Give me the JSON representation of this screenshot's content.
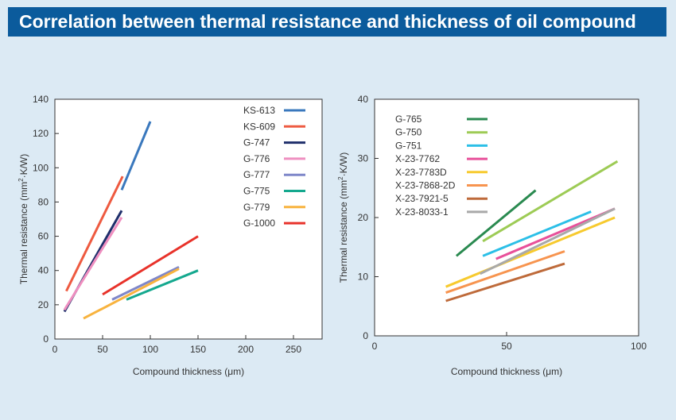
{
  "title": "Correlation between thermal resistance and thickness of oil compound",
  "chart_data": [
    {
      "type": "line",
      "xlabel": "Compound thickness (μm)",
      "ylabel_parts": [
        "Thermal resistance (mm",
        "2",
        "·K/W)"
      ],
      "xlim": [
        0,
        280
      ],
      "ylim": [
        0,
        140
      ],
      "xticks": [
        "0",
        "50",
        "100",
        "150",
        "200",
        "250"
      ],
      "yticks": [
        "0",
        "20",
        "40",
        "60",
        "80",
        "100",
        "120",
        "140"
      ],
      "legend_position": "top-right",
      "series": [
        {
          "name": "KS-613",
          "color": "#3a78bd",
          "points": [
            [
              70,
              87
            ],
            [
              100,
              127
            ]
          ]
        },
        {
          "name": "KS-609",
          "color": "#ee5a40",
          "points": [
            [
              12,
              28
            ],
            [
              71,
              95
            ]
          ]
        },
        {
          "name": "G-747",
          "color": "#1f2f6b",
          "points": [
            [
              10,
              16
            ],
            [
              70,
              75
            ]
          ]
        },
        {
          "name": "G-776",
          "color": "#ef8fc0",
          "points": [
            [
              10,
              17
            ],
            [
              70,
              71
            ]
          ]
        },
        {
          "name": "G-777",
          "color": "#7f87c9",
          "points": [
            [
              60,
              23
            ],
            [
              130,
              42
            ]
          ]
        },
        {
          "name": "G-775",
          "color": "#14a88e",
          "points": [
            [
              75,
              23
            ],
            [
              150,
              40
            ]
          ]
        },
        {
          "name": "G-779",
          "color": "#f8b33e",
          "points": [
            [
              30,
              12
            ],
            [
              130,
              41
            ]
          ]
        },
        {
          "name": "G-1000",
          "color": "#e8322a",
          "points": [
            [
              50,
              26
            ],
            [
              150,
              60
            ]
          ]
        }
      ]
    },
    {
      "type": "line",
      "xlabel": "Compound thickness (μm)",
      "ylabel_parts": [
        "Thermal resistance (mm",
        "2",
        "·K/W)"
      ],
      "xlim": [
        0,
        100
      ],
      "ylim": [
        0,
        40
      ],
      "xticks": [
        "0",
        "50",
        "100"
      ],
      "yticks": [
        "0",
        "10",
        "20",
        "30",
        "40"
      ],
      "legend_position": "top-left",
      "series": [
        {
          "name": "G-765",
          "color": "#2a8a50",
          "points": [
            [
              31,
              13.5
            ],
            [
              61,
              24.6
            ]
          ]
        },
        {
          "name": "G-750",
          "color": "#9dcb55",
          "points": [
            [
              41,
              16
            ],
            [
              92,
              29.5
            ]
          ]
        },
        {
          "name": "G-751",
          "color": "#2cbfe7",
          "points": [
            [
              41,
              13.5
            ],
            [
              82,
              21
            ]
          ]
        },
        {
          "name": "X-23-7762",
          "color": "#e8509a",
          "points": [
            [
              46,
              13
            ],
            [
              91,
              21.5
            ]
          ]
        },
        {
          "name": "X-23-7783D",
          "color": "#f7ca2e",
          "points": [
            [
              27,
              8.3
            ],
            [
              91,
              20
            ]
          ]
        },
        {
          "name": "X-23-7868-2D",
          "color": "#f7944f",
          "points": [
            [
              27,
              7.3
            ],
            [
              72,
              14.3
            ]
          ]
        },
        {
          "name": "X-23-7921-5",
          "color": "#be6a3a",
          "points": [
            [
              27,
              5.9
            ],
            [
              72,
              12.2
            ]
          ]
        },
        {
          "name": "X-23-8033-1",
          "color": "#a9a9a9",
          "points": [
            [
              40,
              10.5
            ],
            [
              91,
              21.5
            ]
          ]
        }
      ]
    }
  ]
}
